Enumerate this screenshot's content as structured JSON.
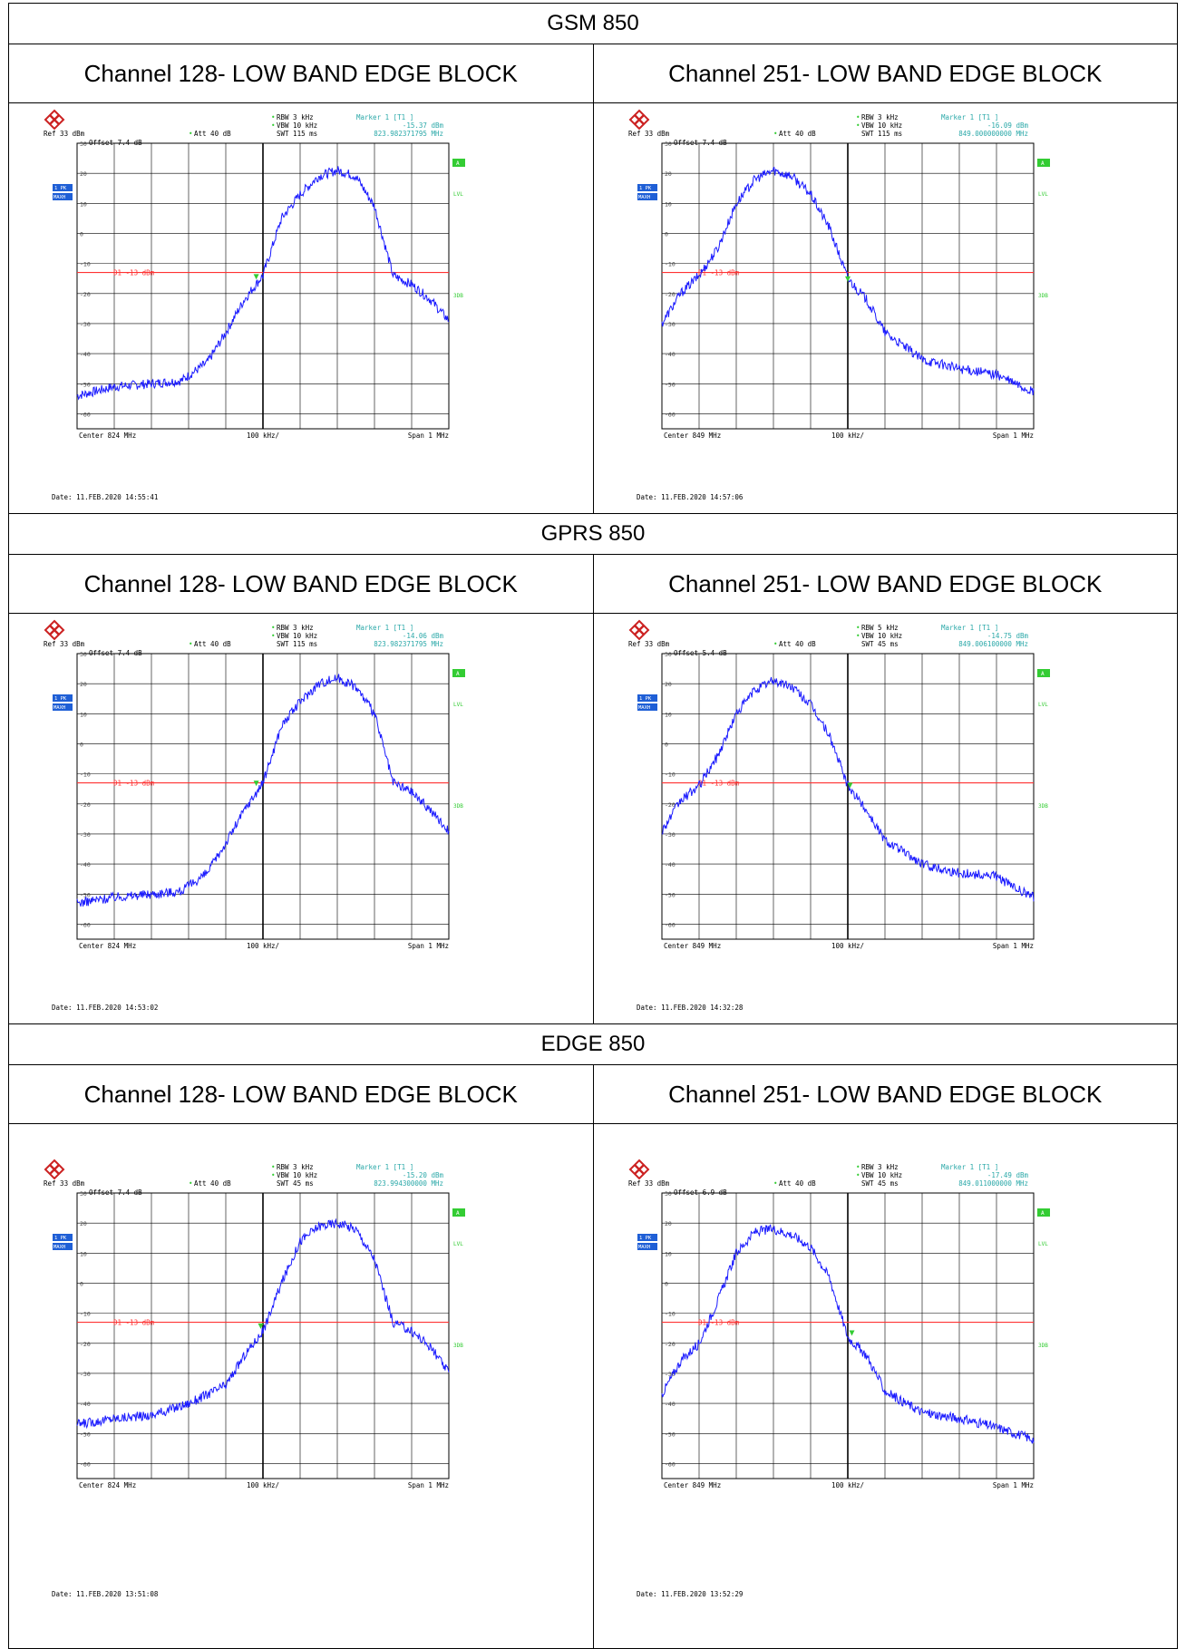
{
  "sections": [
    {
      "title": "GSM 850",
      "plots": [
        {
          "channel_title": "Channel 128- LOW BAND EDGE BLOCK",
          "rbw": "RBW 3 kHz",
          "vbw": "VBW 10 kHz",
          "swt": "SWT 115 ms",
          "marker_label": "Marker 1 [T1 ]",
          "marker_level": "-15.37 dBm",
          "marker_freq": "823.982371795 MHz",
          "ref": "Ref  33 dBm",
          "att": "Att  40 dB",
          "offset": "Offset  7.4 dB",
          "center": "Center  824 MHz",
          "div": "100 kHz/",
          "span": "Span  1 MHz",
          "date": "Date: 11.FEB.2020  14:55:41",
          "line": "D1 -13 dBm"
        },
        {
          "channel_title": "Channel 251- LOW BAND EDGE BLOCK",
          "rbw": "RBW 3 kHz",
          "vbw": "VBW 10 kHz",
          "swt": "SWT 115 ms",
          "marker_label": "Marker 1 [T1 ]",
          "marker_level": "-16.09 dBm",
          "marker_freq": "849.000000000 MHz",
          "ref": "Ref  33 dBm",
          "att": "Att  40 dB",
          "offset": "Offset  7.4 dB",
          "center": "Center  849 MHz",
          "div": "100 kHz/",
          "span": "Span  1 MHz",
          "date": "Date: 11.FEB.2020  14:57:06",
          "line": "D1 -13 dBm"
        }
      ]
    },
    {
      "title": "GPRS 850",
      "plots": [
        {
          "channel_title": "Channel 128- LOW BAND EDGE BLOCK",
          "rbw": "RBW 3 kHz",
          "vbw": "VBW 10 kHz",
          "swt": "SWT 115 ms",
          "marker_label": "Marker 1 [T1 ]",
          "marker_level": "-14.06 dBm",
          "marker_freq": "823.982371795 MHz",
          "ref": "Ref  33 dBm",
          "att": "Att  40 dB",
          "offset": "Offset  7.4 dB",
          "center": "Center  824 MHz",
          "div": "100 kHz/",
          "span": "Span  1 MHz",
          "date": "Date: 11.FEB.2020  14:53:02",
          "line": "D1 -13 dBm"
        },
        {
          "channel_title": "Channel 251- LOW BAND EDGE BLOCK",
          "rbw": "RBW 5 kHz",
          "vbw": "VBW 10 kHz",
          "swt": "SWT 45 ms",
          "marker_label": "Marker 1 [T1 ]",
          "marker_level": "-14.75 dBm",
          "marker_freq": "849.006100000 MHz",
          "ref": "Ref  33 dBm",
          "att": "Att  40 dB",
          "offset": "Offset  5.4 dB",
          "center": "Center  849 MHz",
          "div": "100 kHz/",
          "span": "Span  1 MHz",
          "date": "Date: 11.FEB.2020  14:32:28",
          "line": "D1 -13 dBm"
        }
      ]
    },
    {
      "title": "EDGE 850",
      "plots": [
        {
          "channel_title": "Channel 128- LOW BAND EDGE BLOCK",
          "rbw": "RBW 3 kHz",
          "vbw": "VBW 10 kHz",
          "swt": "SWT 45 ms",
          "marker_label": "Marker 1 [T1 ]",
          "marker_level": "-15.20 dBm",
          "marker_freq": "823.994300000 MHz",
          "ref": "Ref  33 dBm",
          "att": "Att  40 dB",
          "offset": "Offset  7.4 dB",
          "center": "Center  824 MHz",
          "div": "100 kHz/",
          "span": "Span  1 MHz",
          "date": "Date: 11.FEB.2020  13:51:08",
          "line": "D1 -13 dBm"
        },
        {
          "channel_title": "Channel 251- LOW BAND EDGE BLOCK",
          "rbw": "RBW 3 kHz",
          "vbw": "VBW 10 kHz",
          "swt": "SWT 45 ms",
          "marker_label": "Marker 1 [T1 ]",
          "marker_level": "-17.49 dBm",
          "marker_freq": "849.011000000 MHz",
          "ref": "Ref  33 dBm",
          "att": "Att  40 dB",
          "offset": "Offset  6.9 dB",
          "center": "Center  849 MHz",
          "div": "100 kHz/",
          "span": "Span  1 MHz",
          "date": "Date: 11.FEB.2020  13:52:29",
          "line": "D1 -13 dBm"
        }
      ]
    }
  ],
  "instrument_labels": {
    "trace_label": "1 PK",
    "mode_label": "MAXH",
    "a_label": "A",
    "lvl_label": "LVL",
    "three_db_label": "3DB"
  },
  "colors": {
    "trace": "#1a1aff",
    "display_line": "#ff3333",
    "setting_text": "#000000",
    "marker_text": "#2aa8a8",
    "badge_blue": "#1f5fd6",
    "badge_green": "#33cc33",
    "grid": "#000000"
  },
  "chart_data": [
    {
      "type": "line",
      "title": "Channel 128- LOW BAND EDGE BLOCK",
      "xlabel": "",
      "ylabel": "",
      "x_unit": "MHz",
      "y_unit": "dBm",
      "xlim": [
        823.5,
        824.5
      ],
      "ylim": [
        -65,
        30
      ],
      "y_ticks": [
        30,
        20,
        10,
        0,
        -10,
        -20,
        -30,
        -40,
        -50,
        -60
      ],
      "display_line": -13,
      "marker": {
        "x": 823.982,
        "y": -15.37
      },
      "grid": true,
      "series": [
        {
          "x": [
            823.5,
            823.6,
            823.7,
            823.78,
            823.85,
            823.9,
            823.95,
            824.0,
            824.05,
            824.1,
            824.15,
            824.2,
            824.25,
            824.3,
            824.35,
            824.4,
            824.45,
            824.5
          ],
          "values": [
            -54,
            -51,
            -50,
            -49,
            -43,
            -33,
            -22,
            -14,
            5,
            13,
            19,
            21,
            19,
            9,
            -14,
            -17,
            -22,
            -29
          ]
        }
      ]
    },
    {
      "type": "line",
      "title": "Channel 251- LOW BAND EDGE BLOCK",
      "xlabel": "",
      "ylabel": "",
      "x_unit": "MHz",
      "y_unit": "dBm",
      "xlim": [
        848.5,
        849.5
      ],
      "ylim": [
        -65,
        30
      ],
      "y_ticks": [
        30,
        20,
        10,
        0,
        -10,
        -20,
        -30,
        -40,
        -50,
        -60
      ],
      "display_line": -13,
      "marker": {
        "x": 849.0,
        "y": -16.09
      },
      "grid": true,
      "series": [
        {
          "x": [
            848.5,
            848.55,
            848.6,
            848.65,
            848.7,
            848.75,
            848.8,
            848.85,
            848.9,
            848.95,
            849.0,
            849.05,
            849.1,
            849.2,
            849.3,
            849.4,
            849.45,
            849.5
          ],
          "values": [
            -30,
            -20,
            -14,
            -5,
            10,
            18,
            21,
            19,
            13,
            2,
            -15,
            -22,
            -33,
            -42,
            -45,
            -47,
            -50,
            -53
          ]
        }
      ]
    },
    {
      "type": "line",
      "title": "Channel 128- LOW BAND EDGE BLOCK",
      "xlabel": "",
      "ylabel": "",
      "x_unit": "MHz",
      "y_unit": "dBm",
      "xlim": [
        823.5,
        824.5
      ],
      "ylim": [
        -65,
        30
      ],
      "y_ticks": [
        30,
        20,
        10,
        0,
        -10,
        -20,
        -30,
        -40,
        -50,
        -60
      ],
      "display_line": -13,
      "marker": {
        "x": 823.982,
        "y": -14.06
      },
      "grid": true,
      "series": [
        {
          "x": [
            823.5,
            823.6,
            823.7,
            823.78,
            823.85,
            823.9,
            823.95,
            824.0,
            824.05,
            824.1,
            824.15,
            824.2,
            824.25,
            824.3,
            824.35,
            824.4,
            824.45,
            824.5
          ],
          "values": [
            -53,
            -51,
            -50,
            -49,
            -43,
            -33,
            -22,
            -13,
            6,
            14,
            20,
            22,
            19,
            10,
            -13,
            -16,
            -22,
            -29
          ]
        }
      ]
    },
    {
      "type": "line",
      "title": "Channel 251- LOW BAND EDGE BLOCK",
      "xlabel": "",
      "ylabel": "",
      "x_unit": "MHz",
      "y_unit": "dBm",
      "xlim": [
        848.5,
        849.5
      ],
      "ylim": [
        -65,
        30
      ],
      "y_ticks": [
        30,
        20,
        10,
        0,
        -10,
        -20,
        -30,
        -40,
        -50,
        -60
      ],
      "display_line": -13,
      "marker": {
        "x": 849.006,
        "y": -14.75
      },
      "grid": true,
      "series": [
        {
          "x": [
            848.5,
            848.55,
            848.6,
            848.65,
            848.7,
            848.75,
            848.8,
            848.85,
            848.9,
            848.95,
            849.0,
            849.05,
            849.1,
            849.2,
            849.3,
            849.4,
            849.45,
            849.5
          ],
          "values": [
            -29,
            -19,
            -14,
            -4,
            10,
            18,
            21,
            19,
            13,
            3,
            -14,
            -22,
            -32,
            -40,
            -43,
            -44,
            -48,
            -51
          ]
        }
      ]
    },
    {
      "type": "line",
      "title": "Channel 128- LOW BAND EDGE BLOCK",
      "xlabel": "",
      "ylabel": "",
      "x_unit": "MHz",
      "y_unit": "dBm",
      "xlim": [
        823.5,
        824.5
      ],
      "ylim": [
        -65,
        30
      ],
      "y_ticks": [
        30,
        20,
        10,
        0,
        -10,
        -20,
        -30,
        -40,
        -50,
        -60
      ],
      "display_line": -13,
      "marker": {
        "x": 823.994,
        "y": -15.2
      },
      "grid": true,
      "series": [
        {
          "x": [
            823.5,
            823.6,
            823.7,
            823.8,
            823.9,
            823.95,
            824.0,
            824.05,
            824.1,
            824.15,
            824.2,
            824.25,
            824.3,
            824.35,
            824.4,
            824.45,
            824.5
          ],
          "values": [
            -47,
            -45,
            -44,
            -40,
            -34,
            -24,
            -16,
            0,
            14,
            19,
            20,
            18,
            8,
            -13,
            -16,
            -21,
            -30
          ]
        }
      ]
    },
    {
      "type": "line",
      "title": "Channel 251- LOW BAND EDGE BLOCK",
      "xlabel": "",
      "ylabel": "",
      "x_unit": "MHz",
      "y_unit": "dBm",
      "xlim": [
        848.5,
        849.5
      ],
      "ylim": [
        -65,
        30
      ],
      "y_ticks": [
        30,
        20,
        10,
        0,
        -10,
        -20,
        -30,
        -40,
        -50,
        -60
      ],
      "display_line": -13,
      "marker": {
        "x": 849.011,
        "y": -17.49
      },
      "grid": true,
      "series": [
        {
          "x": [
            848.5,
            848.55,
            848.6,
            848.65,
            848.7,
            848.75,
            848.8,
            848.85,
            848.9,
            848.95,
            849.0,
            849.05,
            849.1,
            849.2,
            849.3,
            849.4,
            849.45,
            849.5
          ],
          "values": [
            -37,
            -26,
            -20,
            -6,
            10,
            17,
            18,
            16,
            12,
            2,
            -18,
            -24,
            -36,
            -43,
            -45,
            -48,
            -50,
            -52
          ]
        }
      ]
    }
  ]
}
